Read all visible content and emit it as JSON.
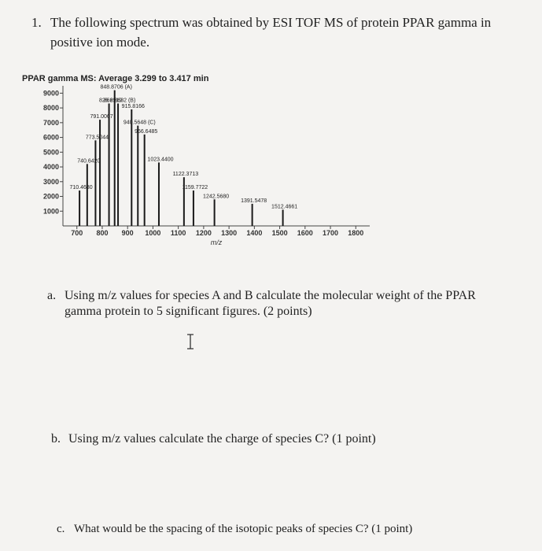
{
  "question": {
    "number": "1.",
    "text": "The following spectrum was obtained by ESI TOF MS of protein PPAR gamma in positive ion mode."
  },
  "chart_data": {
    "type": "bar",
    "title": "PPAR gamma MS: Average 3.299 to 3.417 min",
    "x_label": "m/z",
    "x": [
      710.463,
      740.642,
      773.5044,
      791.0067,
      826.6919,
      848.8706,
      862.3632,
      915.8166,
      940.5648,
      966.6485,
      1023.44,
      1122.3713,
      1159.7722,
      1242.568,
      1391.5478,
      1512.4661
    ],
    "values": [
      2400,
      4200,
      5800,
      7200,
      8300,
      9200,
      8300,
      7900,
      6800,
      6200,
      4300,
      3300,
      2400,
      1800,
      1500,
      1100
    ],
    "peak_labels": [
      "710.4630",
      "740.6420",
      "773.5044",
      "791.0067",
      "826.6919",
      "848.8706 (A)",
      "862.3632 (B)",
      "915.8166",
      "940.5648 (C)",
      "966.6485",
      "1023.4400",
      "1122.3713",
      "1159.7722",
      "1242.5680",
      "1391.5478",
      "1512.4661"
    ],
    "color": "#1a1a1a",
    "xlim": [
      645,
      1855
    ],
    "xticks": [
      700,
      800,
      900,
      1000,
      1100,
      1200,
      1300,
      1400,
      1500,
      1600,
      1700,
      1800
    ],
    "ylim": [
      0,
      9500
    ],
    "yticks": [
      1000,
      2000,
      3000,
      4000,
      5000,
      6000,
      7000,
      8000,
      9000
    ]
  },
  "parts": [
    {
      "label": "a.",
      "text": "Using m/z values for species A and B calculate the molecular weight of the PPAR gamma protein to 5 significant figures. (2 points)"
    },
    {
      "label": "b.",
      "text": "Using m/z values calculate the charge of species C? (1 point)"
    },
    {
      "label": "c.",
      "text": "What would be the spacing of the isotopic peaks of species C? (1 point)"
    }
  ]
}
